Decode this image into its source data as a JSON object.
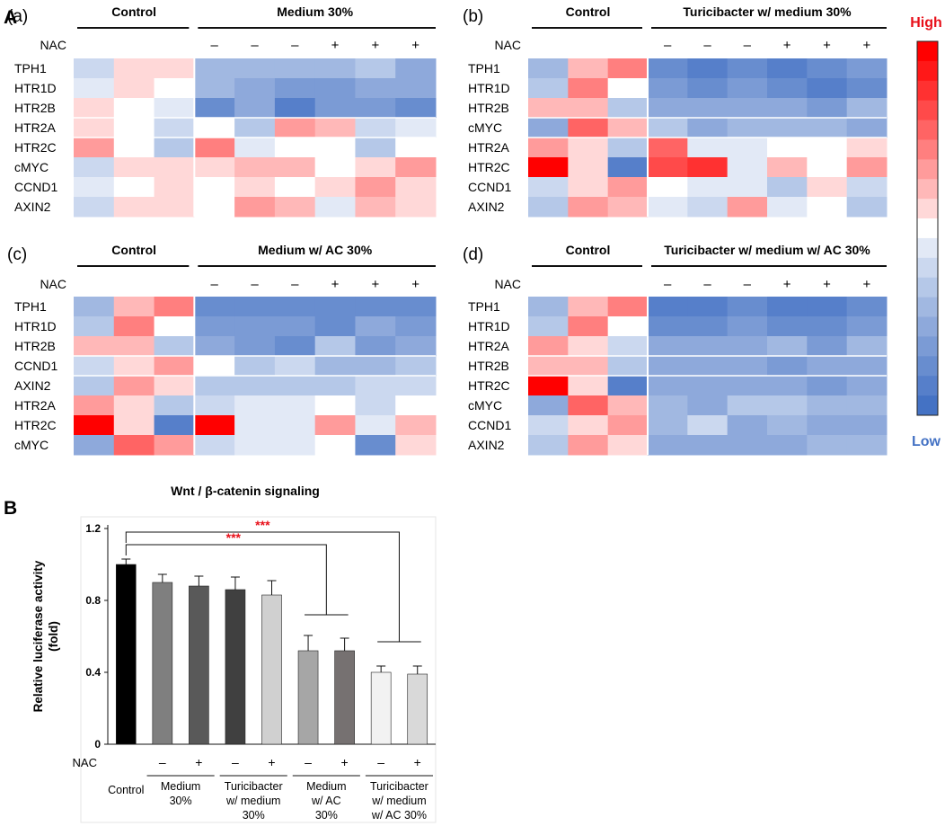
{
  "panelA": {
    "label": "A",
    "nac_label": "NAC",
    "nac_row": [
      "",
      "",
      "",
      "–",
      "–",
      "–",
      "+",
      "+",
      "+"
    ],
    "legend": {
      "high": "High",
      "low": "Low",
      "high_color": "#e8101a",
      "low_color": "#4472c4"
    },
    "heatmaps": [
      {
        "sub": "(a)",
        "group_control": "Control",
        "group_treat": "Medium 30%",
        "genes": [
          "TPH1",
          "HTR1D",
          "HTR2B",
          "HTR2A",
          "HTR2C",
          "cMYC",
          "CCND1",
          "AXIN2"
        ],
        "values": [
          [
            -2,
            1,
            1,
            -4,
            -4,
            -4,
            -4,
            -3,
            -5
          ],
          [
            -1,
            1,
            0,
            -4,
            -5,
            -6,
            -6,
            -5,
            -5
          ],
          [
            1,
            0,
            -1,
            -7,
            -5,
            -8,
            -6,
            -6,
            -7
          ],
          [
            1,
            0,
            -2,
            0,
            -3,
            3,
            2,
            -2,
            -1
          ],
          [
            3,
            0,
            -3,
            4,
            -1,
            0,
            0,
            -3,
            0
          ],
          [
            -2,
            1,
            1,
            1,
            2,
            2,
            0,
            1,
            3
          ],
          [
            -1,
            0,
            1,
            0,
            1,
            0,
            1,
            3,
            1
          ],
          [
            -2,
            1,
            1,
            0,
            3,
            2,
            -1,
            2,
            1
          ]
        ]
      },
      {
        "sub": "(b)",
        "group_control": "Control",
        "group_treat": "Turicibacter w/ medium 30%",
        "genes": [
          "TPH1",
          "HTR1D",
          "HTR2B",
          "cMYC",
          "HTR2A",
          "HTR2C",
          "CCND1",
          "AXIN2"
        ],
        "values": [
          [
            -4,
            2,
            4,
            -7,
            -8,
            -7,
            -8,
            -7,
            -6
          ],
          [
            -3,
            4,
            0,
            -6,
            -7,
            -6,
            -7,
            -8,
            -7
          ],
          [
            2,
            2,
            -3,
            -5,
            -5,
            -5,
            -5,
            -6,
            -4
          ],
          [
            -5,
            5,
            2,
            -3,
            -5,
            -4,
            -4,
            -4,
            -5
          ],
          [
            3,
            1,
            -3,
            5,
            -1,
            -1,
            0,
            0,
            1
          ],
          [
            9,
            1,
            -8,
            6,
            7,
            -1,
            2,
            0,
            3
          ],
          [
            -2,
            1,
            3,
            0,
            -1,
            -1,
            -3,
            1,
            -2
          ],
          [
            -3,
            3,
            2,
            -1,
            -2,
            3,
            -1,
            0,
            -3
          ]
        ]
      },
      {
        "sub": "(c)",
        "group_control": "Control",
        "group_treat": "Medium w/ AC 30%",
        "genes": [
          "TPH1",
          "HTR1D",
          "HTR2B",
          "CCND1",
          "AXIN2",
          "HTR2A",
          "HTR2C",
          "cMYC"
        ],
        "values": [
          [
            -4,
            2,
            4,
            -7,
            -7,
            -7,
            -7,
            -7,
            -7
          ],
          [
            -3,
            4,
            0,
            -6,
            -6,
            -6,
            -7,
            -5,
            -6
          ],
          [
            2,
            2,
            -3,
            -5,
            -6,
            -7,
            -3,
            -6,
            -5
          ],
          [
            -2,
            1,
            3,
            0,
            -3,
            -2,
            -4,
            -4,
            -3
          ],
          [
            -3,
            3,
            1,
            -3,
            -3,
            -3,
            -3,
            -2,
            -2
          ],
          [
            3,
            1,
            -3,
            -2,
            -1,
            -1,
            0,
            -2,
            0
          ],
          [
            9,
            1,
            -8,
            9,
            -1,
            -1,
            3,
            -1,
            2
          ],
          [
            -5,
            5,
            3,
            -2,
            -1,
            -1,
            0,
            -7,
            1
          ]
        ]
      },
      {
        "sub": "(d)",
        "group_control": "Control",
        "group_treat": "Turicibacter w/ medium w/ AC 30%",
        "genes": [
          "TPH1",
          "HTR1D",
          "HTR2A",
          "HTR2B",
          "HTR2C",
          "cMYC",
          "CCND1",
          "AXIN2"
        ],
        "values": [
          [
            -4,
            2,
            4,
            -8,
            -8,
            -7,
            -8,
            -8,
            -7
          ],
          [
            -3,
            4,
            0,
            -7,
            -7,
            -6,
            -7,
            -7,
            -6
          ],
          [
            3,
            1,
            -2,
            -5,
            -5,
            -5,
            -4,
            -6,
            -4
          ],
          [
            2,
            2,
            -3,
            -5,
            -5,
            -5,
            -6,
            -5,
            -5
          ],
          [
            9,
            1,
            -8,
            -5,
            -5,
            -5,
            -5,
            -6,
            -5
          ],
          [
            -5,
            5,
            2,
            -4,
            -5,
            -3,
            -3,
            -4,
            -4
          ],
          [
            -2,
            1,
            3,
            -4,
            -2,
            -5,
            -4,
            -5,
            -5
          ],
          [
            -3,
            3,
            1,
            -5,
            -5,
            -5,
            -5,
            -4,
            -4
          ]
        ]
      }
    ]
  },
  "panelB": {
    "label": "B",
    "nac_label": "NAC",
    "signif": "***",
    "signif_color": "#e8101a",
    "chart_data": {
      "type": "bar",
      "title": "Wnt / β-catenin signaling",
      "xlabel": "",
      "ylabel": "Relative luciferase activity (fold)",
      "ylabel_lines": [
        "Relative luciferase activity",
        "(fold)"
      ],
      "ylim": [
        0,
        1.2
      ],
      "yticks": [
        "0",
        "0.4",
        "0.8",
        "1.2"
      ],
      "ytick_values": [
        0,
        0.4,
        0.8,
        1.2
      ],
      "categories": [
        "Control",
        "Medium 30% (–NAC)",
        "Medium 30% (+NAC)",
        "Turicibacter w/ medium 30% (–NAC)",
        "Turicibacter w/ medium 30% (+NAC)",
        "Medium w/ AC 30% (–NAC)",
        "Medium w/ AC 30% (+NAC)",
        "Turicibacter w/ medium w/ AC 30% (–NAC)",
        "Turicibacter w/ medium w/ AC 30% (+NAC)"
      ],
      "values": [
        1.0,
        0.9,
        0.88,
        0.86,
        0.83,
        0.52,
        0.52,
        0.4,
        0.39
      ],
      "errors": [
        0.03,
        0.045,
        0.055,
        0.07,
        0.08,
        0.085,
        0.07,
        0.035,
        0.045
      ],
      "bar_colors": [
        "#000000",
        "#7f7f7f",
        "#595959",
        "#404040",
        "#d0d0d0",
        "#a6a6a6",
        "#767171",
        "#f2f2f2",
        "#d9d9d9"
      ],
      "nac": [
        "",
        "–",
        "+",
        "–",
        "+",
        "–",
        "+",
        "–",
        "+"
      ],
      "group_labels": [
        {
          "lines": [
            "Control"
          ]
        },
        {
          "lines": [
            "Medium",
            "30%"
          ]
        },
        {
          "lines": [
            "Turicibacter",
            "w/ medium",
            "30%"
          ]
        },
        {
          "lines": [
            "Medium",
            "w/ AC",
            "30%"
          ]
        },
        {
          "lines": [
            "Turicibacter",
            "w/ medium",
            "w/ AC 30%"
          ]
        }
      ]
    }
  }
}
